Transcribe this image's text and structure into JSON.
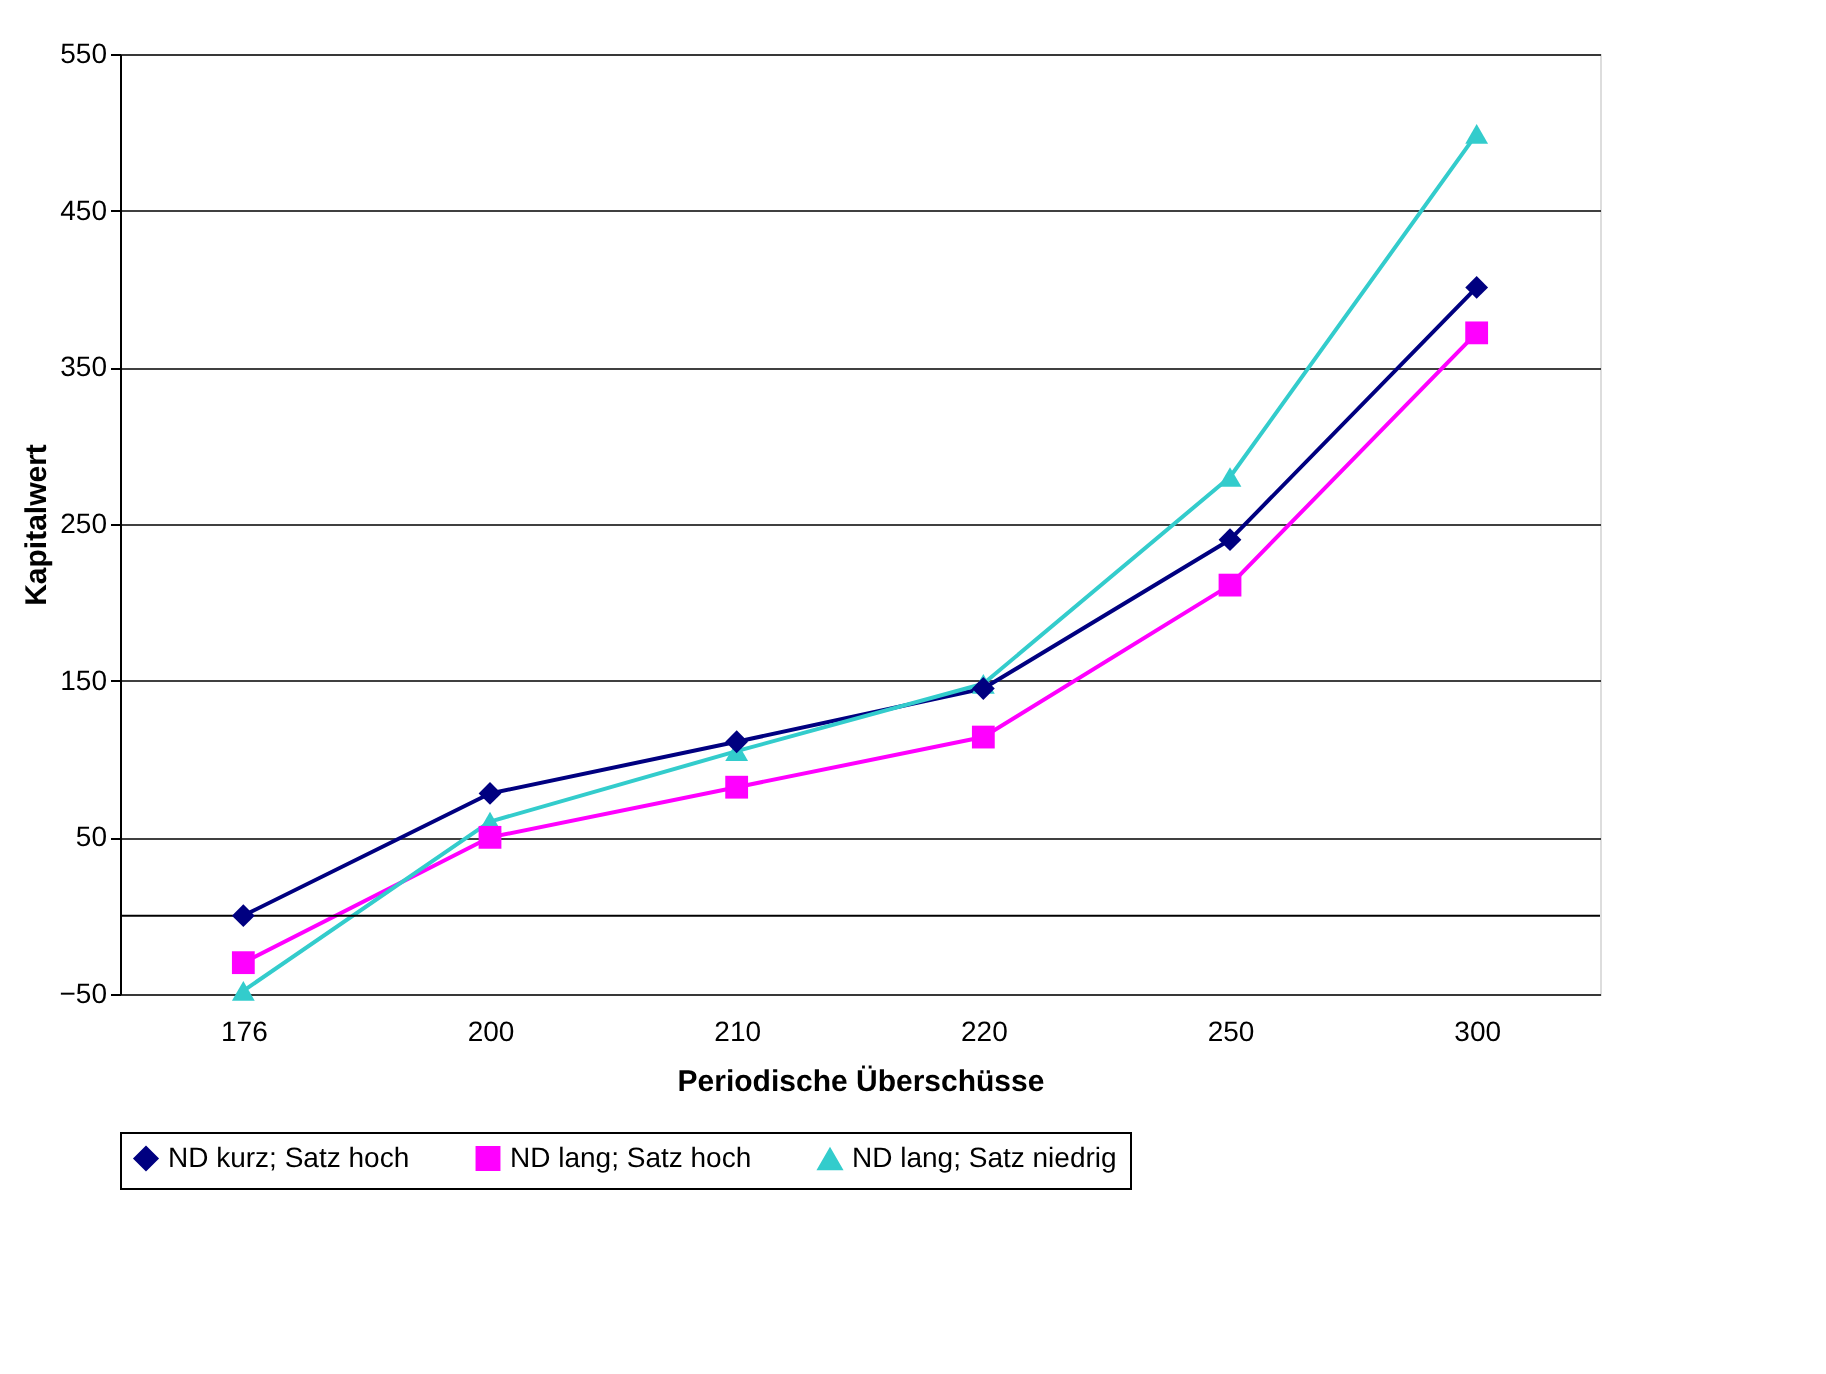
{
  "chart_data": {
    "type": "line",
    "xlabel": "Periodische Überschüsse",
    "ylabel": "Kapitalwert",
    "categories": [
      "176",
      "200",
      "210",
      "220",
      "250",
      "300"
    ],
    "series": [
      {
        "name": "ND kurz; Satz hoch",
        "color": "#000080",
        "marker": "diamond",
        "values": [
          0,
          78,
          111,
          145,
          240,
          401
        ]
      },
      {
        "name": "ND lang; Satz hoch",
        "color": "#ff00ff",
        "marker": "square",
        "values": [
          -30,
          50,
          82,
          114,
          211,
          372
        ]
      },
      {
        "name": "ND lang; Satz niedrig",
        "color": "#33cccc",
        "marker": "triangle",
        "values": [
          -48,
          60,
          105,
          148,
          280,
          499
        ]
      }
    ],
    "ylim": [
      -50,
      550
    ],
    "yticks": [
      -50,
      50,
      150,
      250,
      350,
      450,
      550
    ],
    "grid": "y",
    "legend": "bottom",
    "line_style": "solid",
    "ref_lines": [
      {
        "axis": "y",
        "value": 0,
        "label": null,
        "color": "#000000"
      }
    ]
  }
}
